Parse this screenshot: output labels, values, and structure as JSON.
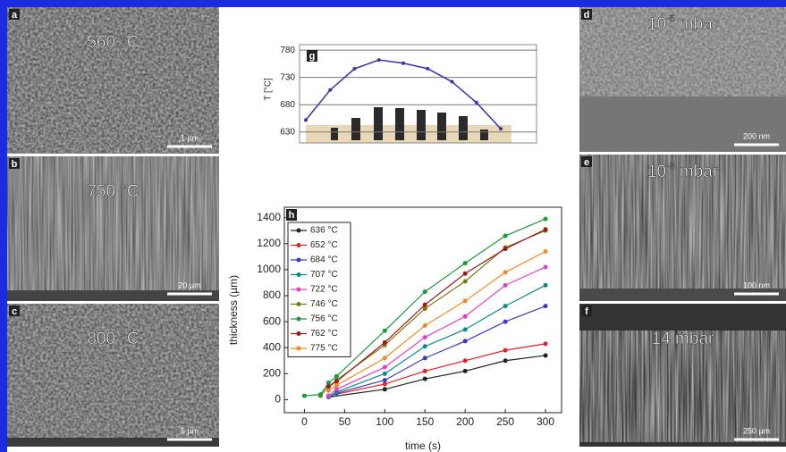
{
  "panels": [
    {
      "letter": "a",
      "label": "560 °C",
      "scale": "1 µm"
    },
    {
      "letter": "b",
      "label": "750 °C",
      "scale": "20 µm"
    },
    {
      "letter": "c",
      "label": "800 °C",
      "scale": "5 µm"
    },
    {
      "letter": "d",
      "base": "10",
      "exp": "-5",
      "unit": "mbar",
      "scale": "200 nm"
    },
    {
      "letter": "e",
      "base": "10",
      "exp": "-3",
      "unit": "mbar",
      "scale": "100 nm"
    },
    {
      "letter": "f",
      "label": "14 mbar",
      "scale": "250 µm"
    }
  ],
  "chart_data": [
    {
      "type": "line",
      "panel_label": "g",
      "y_label": "T [°C]",
      "categories": [
        null,
        null,
        null,
        null,
        null,
        null,
        null,
        null,
        null
      ],
      "values": [
        652,
        707,
        746,
        762,
        756,
        746,
        722,
        684,
        636
      ],
      "color": "#3333aa",
      "ylim": [
        610,
        790
      ],
      "yticks": [
        630,
        680,
        730,
        780
      ],
      "grid": true
    },
    {
      "type": "line",
      "panel_label": "h",
      "x_label": "time (s)",
      "y_label": "thickness (µm)",
      "xlim": [
        -25,
        320
      ],
      "ylim": [
        -100,
        1480
      ],
      "xticks": [
        0,
        50,
        100,
        150,
        200,
        250,
        300
      ],
      "yticks": [
        0,
        200,
        400,
        600,
        800,
        1000,
        1200,
        1400
      ],
      "legend": "top-left",
      "series": [
        {
          "name": "636 °C",
          "color": "#222222",
          "x": [
            30,
            100,
            150,
            200,
            250,
            300
          ],
          "values": [
            20,
            80,
            160,
            220,
            300,
            340
          ]
        },
        {
          "name": "652 °C",
          "color": "#e8202a",
          "x": [
            30,
            100,
            150,
            200,
            250,
            300
          ],
          "values": [
            30,
            120,
            220,
            300,
            380,
            430
          ]
        },
        {
          "name": "684 °C",
          "color": "#3a3ac0",
          "x": [
            30,
            40,
            100,
            150,
            200,
            250,
            300
          ],
          "values": [
            20,
            50,
            150,
            320,
            450,
            600,
            720
          ]
        },
        {
          "name": "707 °C",
          "color": "#0a8a8a",
          "x": [
            30,
            40,
            100,
            150,
            200,
            250,
            300
          ],
          "values": [
            20,
            60,
            200,
            410,
            540,
            720,
            880
          ]
        },
        {
          "name": "722 °C",
          "color": "#e040d0",
          "x": [
            30,
            40,
            100,
            150,
            200,
            250,
            300
          ],
          "values": [
            30,
            80,
            250,
            480,
            640,
            880,
            1020
          ]
        },
        {
          "name": "746 °C",
          "color": "#7a7a10",
          "x": [
            20,
            30,
            40,
            100,
            150,
            200,
            250,
            300
          ],
          "values": [
            30,
            100,
            150,
            420,
            700,
            910,
            1170,
            1300
          ]
        },
        {
          "name": "756 °C",
          "color": "#1a9a3a",
          "x": [
            0,
            20,
            30,
            40,
            100,
            150,
            200,
            250,
            300
          ],
          "values": [
            30,
            40,
            130,
            180,
            530,
            830,
            1050,
            1260,
            1390
          ]
        },
        {
          "name": "762 °C",
          "color": "#a01818",
          "x": [
            30,
            40,
            100,
            150,
            200,
            250,
            300
          ],
          "values": [
            100,
            140,
            440,
            730,
            970,
            1160,
            1310
          ]
        },
        {
          "name": "775 °C",
          "color": "#f08a20",
          "x": [
            30,
            40,
            100,
            150,
            200,
            250,
            300
          ],
          "values": [
            70,
            110,
            320,
            570,
            760,
            980,
            1140
          ]
        }
      ]
    }
  ]
}
